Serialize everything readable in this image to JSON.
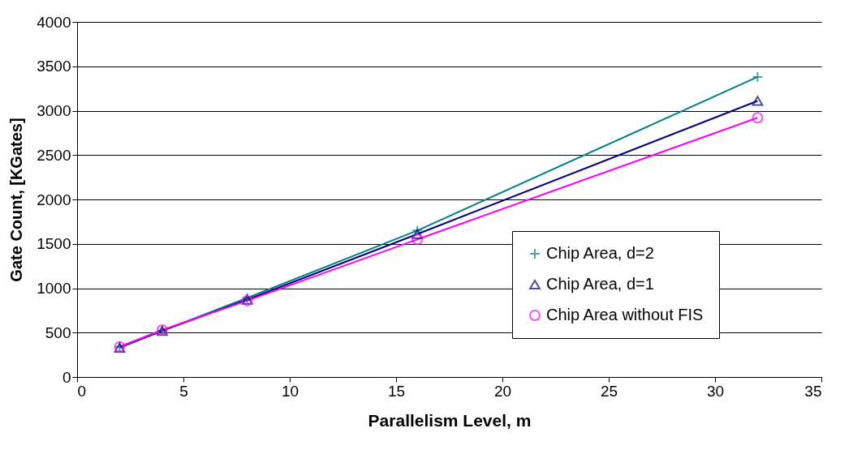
{
  "chart_data": {
    "type": "line",
    "xlabel": "Parallelism Level, m",
    "ylabel": "Gate Count, [KGates]",
    "x": [
      2,
      4,
      8,
      16,
      32
    ],
    "series": [
      {
        "name": "Chip Area, d=2",
        "color": "#008080",
        "marker": "cross",
        "values": [
          340,
          520,
          890,
          1650,
          3380
        ]
      },
      {
        "name": "Chip Area, d=1",
        "color": "#000080",
        "marker": "triangle",
        "values": [
          330,
          520,
          870,
          1610,
          3110
        ]
      },
      {
        "name": "Chip Area without FIS",
        "color": "#ff00ff",
        "marker": "circle",
        "values": [
          340,
          530,
          860,
          1550,
          2920
        ]
      }
    ],
    "xlim": [
      0,
      35
    ],
    "xticks": [
      0,
      5,
      10,
      15,
      20,
      25,
      30,
      35
    ],
    "ylim": [
      0,
      4000
    ],
    "yticks": [
      0,
      500,
      1000,
      1500,
      2000,
      2500,
      3000,
      3500,
      4000
    ],
    "grid": "y",
    "legend": "bottom right"
  }
}
